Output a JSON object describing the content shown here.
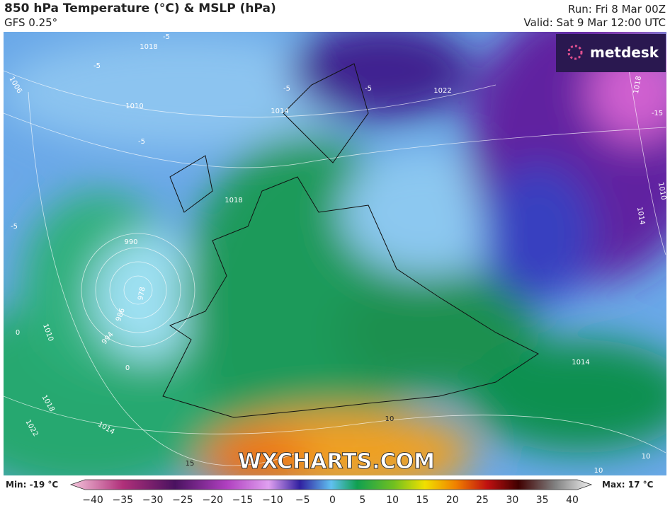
{
  "header": {
    "title": "850 hPa Temperature (°C) & MSLP (hPa)",
    "model": "GFS 0.25°",
    "run": "Run: Fri 8 Mar 00Z",
    "valid": "Valid: Sat 9 Mar 12:00 UTC"
  },
  "brand": {
    "logo": "metdesk",
    "watermark": "WXCHARTS.COM"
  },
  "map": {
    "labels": [
      "1018",
      "1006",
      "1010",
      "1014",
      "1022",
      "1018",
      "-15",
      "1010",
      "1014",
      "990",
      "978",
      "986",
      "994",
      "1010",
      "1018",
      "1022",
      "1014",
      "-5",
      "-5",
      "-5",
      "-5",
      "-5",
      "-5",
      "0",
      "0",
      "10",
      "10",
      "15",
      "10",
      "1014",
      "1018"
    ]
  },
  "legend": {
    "min": "Min: -19 °C",
    "max": "Max: 17 °C",
    "ticks": [
      "−40",
      "−35",
      "−30",
      "−25",
      "−20",
      "−15",
      "−10",
      "−5",
      "0",
      "5",
      "10",
      "15",
      "20",
      "25",
      "30",
      "35",
      "40"
    ]
  }
}
